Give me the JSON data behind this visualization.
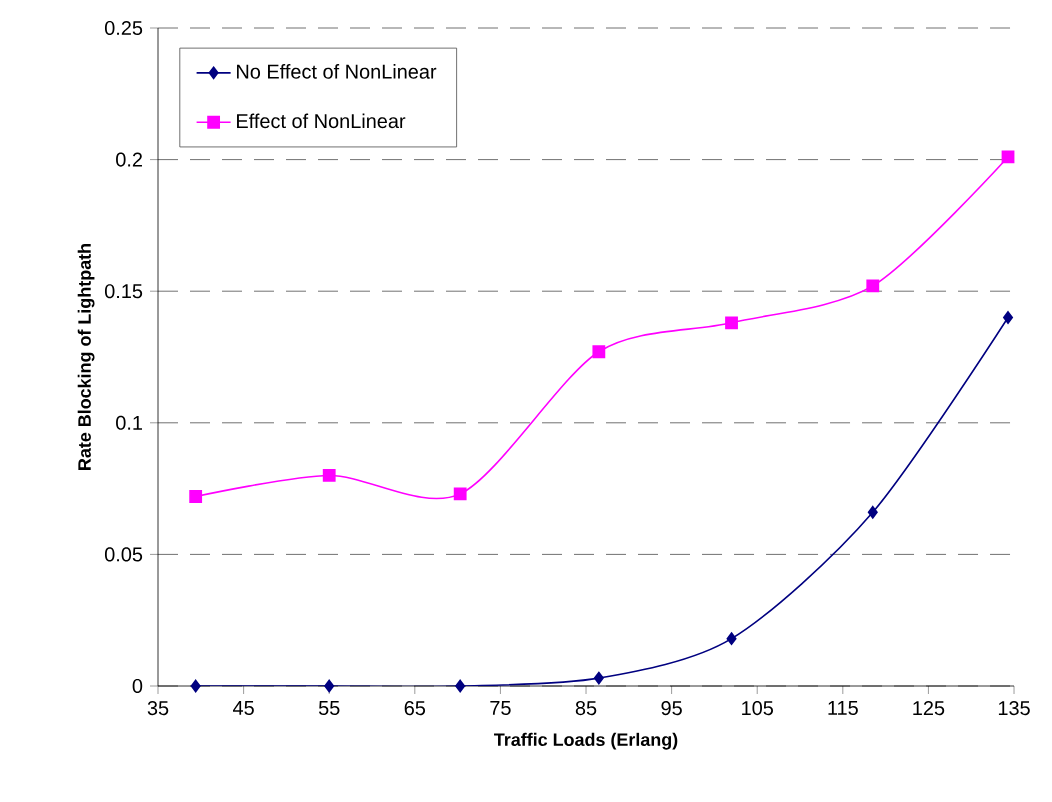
{
  "chart_data": {
    "type": "line",
    "xlabel": "Traffic Loads (Erlang)",
    "ylabel": "Rate Blocking of Lightpath",
    "x": [
      39.4,
      55,
      70.3,
      86.5,
      102,
      118.5,
      134.3
    ],
    "series": [
      {
        "name": "No Effect of NonLinear",
        "color": "#000080",
        "marker": "diamond",
        "values": [
          0,
          0,
          0,
          0.003,
          0.018,
          0.066,
          0.14
        ]
      },
      {
        "name": "Effect of NonLinear",
        "color": "#ff00ff",
        "marker": "square",
        "values": [
          0.072,
          0.08,
          0.073,
          0.127,
          0.138,
          0.152,
          0.201
        ]
      }
    ],
    "xlim": [
      35,
      135
    ],
    "xticks": [
      35,
      45,
      55,
      65,
      75,
      85,
      95,
      105,
      115,
      125,
      135
    ],
    "ylim": [
      0,
      0.25
    ],
    "yticks": [
      0,
      0.05,
      0.1,
      0.15,
      0.2,
      0.25
    ],
    "grid": "y",
    "legend": "top left",
    "line_style": "solid"
  }
}
